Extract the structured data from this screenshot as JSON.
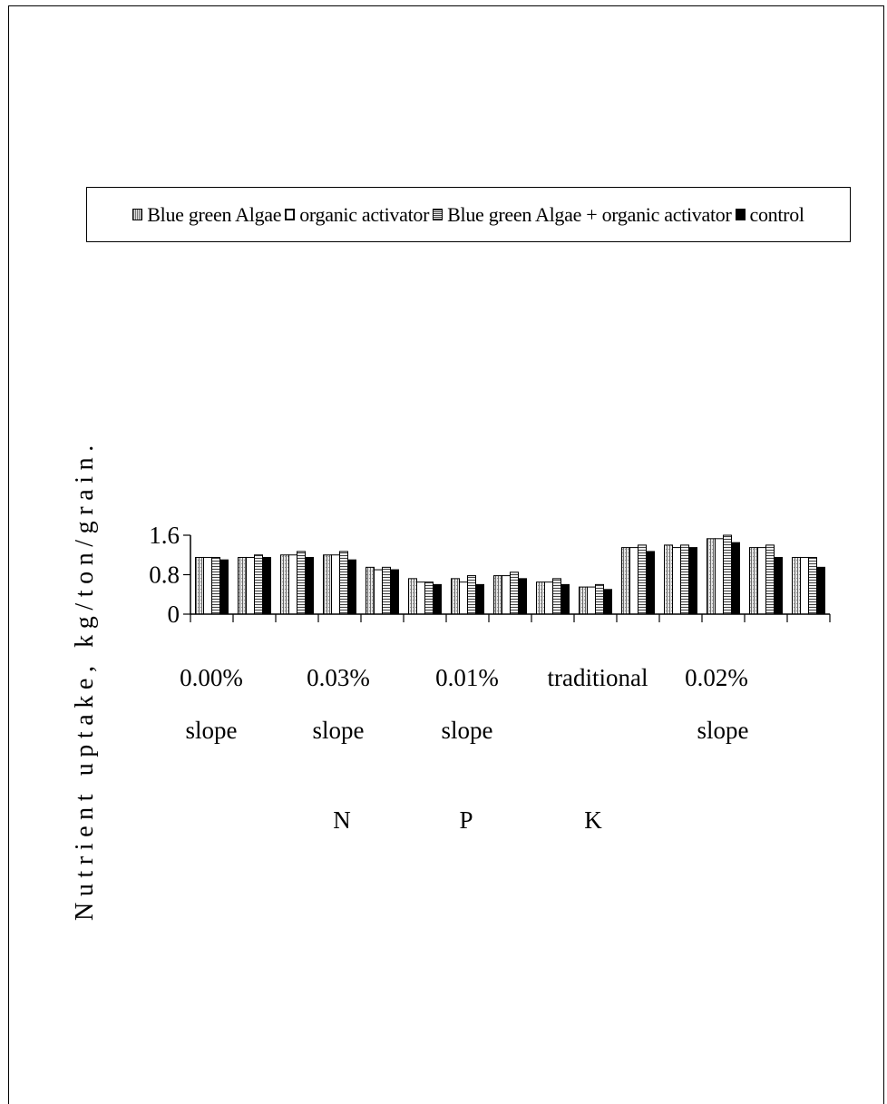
{
  "chart_data": {
    "type": "bar",
    "ylabel": "Nutrient uptake, kg/ton/grain.",
    "ylim": [
      0,
      1.6
    ],
    "yticks": [
      "0",
      "0.8",
      "1.6"
    ],
    "series": [
      {
        "name": "Blue green Algae",
        "values": [
          1.15,
          1.15,
          1.2,
          1.2,
          0.95,
          0.72,
          0.72,
          0.78,
          0.65,
          0.55,
          1.35,
          1.4,
          1.53,
          1.35,
          1.15
        ]
      },
      {
        "name": "organic activator",
        "values": [
          1.15,
          1.15,
          1.2,
          1.2,
          0.9,
          0.65,
          0.65,
          0.78,
          0.65,
          0.55,
          1.35,
          1.35,
          1.53,
          1.35,
          1.15
        ]
      },
      {
        "name": "Blue green Algae + organic activator",
        "values": [
          1.15,
          1.2,
          1.27,
          1.27,
          0.95,
          0.65,
          0.78,
          0.85,
          0.72,
          0.6,
          1.4,
          1.4,
          1.6,
          1.4,
          1.15
        ]
      },
      {
        "name": "control",
        "values": [
          1.1,
          1.15,
          1.15,
          1.1,
          0.9,
          0.6,
          0.6,
          0.72,
          0.6,
          0.5,
          1.27,
          1.35,
          1.45,
          1.15,
          0.95
        ]
      }
    ],
    "x_labels_row1": [
      "0.00%",
      "0.03%",
      "0.01%",
      "traditional",
      "0.02%"
    ],
    "x_labels_row2": [
      "slope",
      "slope",
      "slope",
      "slope"
    ],
    "group_labels": [
      "N",
      "P",
      "K"
    ],
    "legend_position": "top",
    "grid": false
  },
  "legend": {
    "items": [
      {
        "label": "Blue green Algae"
      },
      {
        "label": "organic activator"
      },
      {
        "label": "Blue green Algae + organic activator"
      },
      {
        "label": "control"
      }
    ]
  }
}
